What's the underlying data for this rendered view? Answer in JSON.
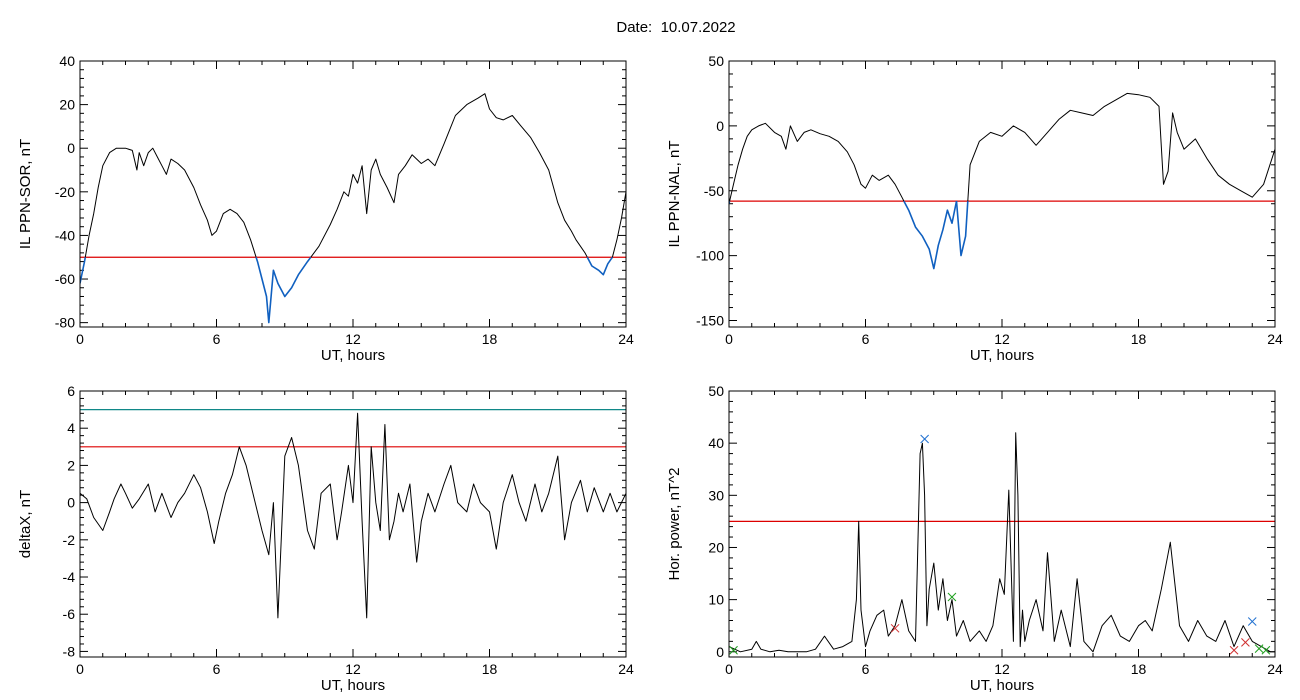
{
  "header": {
    "date_label": "Date:",
    "date_value": "10.07.2022"
  },
  "chart_data": [
    {
      "id": "p1",
      "type": "line",
      "ylabel": "IL PPN-SOR, nT",
      "xlabel": "UT, hours",
      "xlim": [
        0,
        24
      ],
      "ylim": [
        -82,
        40
      ],
      "xticks": [
        0,
        6,
        12,
        18,
        24
      ],
      "yticks": [
        40,
        20,
        0,
        -20,
        -40,
        -60,
        -80
      ],
      "threshold": {
        "value": -50,
        "color": "#dd0000"
      },
      "below_threshold_color": "#1060c0",
      "series_color": "#000000",
      "x": [
        0,
        0.2,
        0.4,
        0.6,
        0.8,
        1.0,
        1.3,
        1.6,
        2.0,
        2.3,
        2.5,
        2.6,
        2.8,
        3.0,
        3.2,
        3.4,
        3.6,
        3.8,
        4.0,
        4.3,
        4.6,
        5.0,
        5.3,
        5.6,
        5.8,
        6.0,
        6.3,
        6.6,
        6.9,
        7.2,
        7.5,
        7.8,
        8.0,
        8.2,
        8.3,
        8.5,
        8.7,
        9.0,
        9.3,
        9.6,
        10.0,
        10.5,
        11.0,
        11.3,
        11.6,
        11.8,
        12.0,
        12.2,
        12.4,
        12.6,
        12.8,
        13.0,
        13.2,
        13.5,
        13.8,
        14.0,
        14.3,
        14.6,
        15.0,
        15.3,
        15.6,
        16.0,
        16.5,
        17.0,
        17.5,
        17.8,
        18.0,
        18.3,
        18.6,
        19.0,
        19.4,
        19.8,
        20.2,
        20.6,
        21.0,
        21.3,
        21.6,
        21.8,
        22.0,
        22.2,
        22.5,
        22.8,
        23.0,
        23.2,
        23.4,
        23.6,
        23.8,
        24.0
      ],
      "y": [
        -62,
        -52,
        -40,
        -30,
        -18,
        -8,
        -2,
        0,
        0,
        -1,
        -10,
        -2,
        -8,
        -2,
        0,
        -4,
        -8,
        -12,
        -5,
        -7,
        -10,
        -18,
        -26,
        -33,
        -40,
        -38,
        -30,
        -28,
        -30,
        -34,
        -42,
        -52,
        -60,
        -68,
        -80,
        -56,
        -62,
        -68,
        -64,
        -58,
        -52,
        -45,
        -35,
        -28,
        -20,
        -22,
        -12,
        -16,
        -8,
        -30,
        -10,
        -5,
        -12,
        -18,
        -25,
        -12,
        -8,
        -3,
        -7,
        -5,
        -8,
        2,
        15,
        20,
        23,
        25,
        18,
        14,
        13,
        15,
        10,
        5,
        -2,
        -10,
        -25,
        -33,
        -38,
        -42,
        -45,
        -48,
        -54,
        -56,
        -58,
        -53,
        -50,
        -42,
        -32,
        -20
      ]
    },
    {
      "id": "p2",
      "type": "line",
      "ylabel": "IL PPN-NAL, nT",
      "xlabel": "UT, hours",
      "xlim": [
        0,
        24
      ],
      "ylim": [
        -155,
        50
      ],
      "xticks": [
        0,
        6,
        12,
        18,
        24
      ],
      "yticks": [
        50,
        0,
        -50,
        -100,
        -150
      ],
      "threshold": {
        "value": -58,
        "color": "#dd0000"
      },
      "below_threshold_color": "#1060c0",
      "series_color": "#000000",
      "x": [
        0,
        0.2,
        0.4,
        0.6,
        0.8,
        1.0,
        1.3,
        1.6,
        2.0,
        2.3,
        2.5,
        2.7,
        3.0,
        3.3,
        3.6,
        4.0,
        4.4,
        4.8,
        5.2,
        5.5,
        5.8,
        6.0,
        6.3,
        6.6,
        7.0,
        7.3,
        7.6,
        7.9,
        8.2,
        8.5,
        8.8,
        9.0,
        9.2,
        9.4,
        9.6,
        9.8,
        10.0,
        10.2,
        10.4,
        10.6,
        11.0,
        11.5,
        12.0,
        12.5,
        13.0,
        13.5,
        14.0,
        14.5,
        15.0,
        15.5,
        16.0,
        16.5,
        17.0,
        17.5,
        18.0,
        18.5,
        18.9,
        19.1,
        19.3,
        19.5,
        19.7,
        20.0,
        20.5,
        21.0,
        21.5,
        22.0,
        22.5,
        23.0,
        23.5,
        24.0
      ],
      "y": [
        -60,
        -45,
        -30,
        -18,
        -8,
        -3,
        0,
        2,
        -5,
        -8,
        -18,
        0,
        -12,
        -5,
        -3,
        -6,
        -8,
        -12,
        -20,
        -30,
        -45,
        -48,
        -38,
        -42,
        -38,
        -45,
        -55,
        -65,
        -78,
        -85,
        -95,
        -110,
        -92,
        -80,
        -65,
        -75,
        -58,
        -100,
        -85,
        -30,
        -12,
        -5,
        -8,
        0,
        -5,
        -15,
        -5,
        5,
        12,
        10,
        8,
        15,
        20,
        25,
        24,
        22,
        15,
        -45,
        -35,
        10,
        -5,
        -18,
        -10,
        -25,
        -38,
        -45,
        -50,
        -55,
        -45,
        -18
      ]
    },
    {
      "id": "p3",
      "type": "line",
      "ylabel": "deltaX, nT",
      "xlabel": "UT, hours",
      "xlim": [
        0,
        24
      ],
      "ylim": [
        -8.3,
        6
      ],
      "xticks": [
        0,
        6,
        12,
        18,
        24
      ],
      "yticks": [
        6,
        4,
        2,
        0,
        -2,
        -4,
        -6,
        -8
      ],
      "thresholds": [
        {
          "value": 5,
          "color": "#108888"
        },
        {
          "value": 3,
          "color": "#dd0000"
        }
      ],
      "series_color": "#000000",
      "x": [
        0,
        0.3,
        0.6,
        1.0,
        1.3,
        1.5,
        1.8,
        2.0,
        2.3,
        2.6,
        3.0,
        3.3,
        3.6,
        4.0,
        4.3,
        4.6,
        5.0,
        5.3,
        5.6,
        5.9,
        6.1,
        6.4,
        6.7,
        7.0,
        7.3,
        7.6,
        8.0,
        8.3,
        8.5,
        8.7,
        9.0,
        9.3,
        9.6,
        10.0,
        10.3,
        10.6,
        11.0,
        11.3,
        11.5,
        11.8,
        12.0,
        12.2,
        12.4,
        12.6,
        12.8,
        13.0,
        13.2,
        13.4,
        13.6,
        13.8,
        14.0,
        14.2,
        14.5,
        14.8,
        15.0,
        15.3,
        15.6,
        16.0,
        16.3,
        16.6,
        17.0,
        17.3,
        17.6,
        18.0,
        18.3,
        18.6,
        19.0,
        19.3,
        19.6,
        20.0,
        20.3,
        20.6,
        21.0,
        21.3,
        21.6,
        22.0,
        22.3,
        22.6,
        23.0,
        23.3,
        23.6,
        24.0
      ],
      "y": [
        0.5,
        0.2,
        -0.8,
        -1.5,
        -0.5,
        0.2,
        1,
        0.5,
        -0.3,
        0.2,
        1,
        -0.5,
        0.5,
        -0.8,
        0,
        0.5,
        1.5,
        0.8,
        -0.5,
        -2.2,
        -1,
        0.5,
        1.5,
        3,
        2,
        0.5,
        -1.5,
        -2.8,
        0,
        -6.2,
        2.5,
        3.5,
        2,
        -1.5,
        -2.5,
        0.5,
        1,
        -2,
        -0.5,
        2,
        0,
        4.8,
        -1,
        -6.2,
        3,
        0,
        -1.5,
        4.2,
        -2,
        -1,
        0.5,
        -0.5,
        1,
        -3.2,
        -1,
        0.5,
        -0.5,
        1,
        2,
        0,
        -0.5,
        1,
        0,
        -0.5,
        -2.5,
        0,
        1.5,
        0,
        -1,
        1,
        -0.5,
        0.5,
        2.5,
        -2,
        0,
        1.2,
        -0.5,
        0.8,
        -0.5,
        0.5,
        -0.5,
        0.5
      ]
    },
    {
      "id": "p4",
      "type": "line",
      "ylabel": "Hor. power, nT^2",
      "xlabel": "UT, hours",
      "xlim": [
        0,
        24
      ],
      "ylim": [
        -1,
        50
      ],
      "xticks": [
        0,
        6,
        12,
        18,
        24
      ],
      "yticks": [
        50,
        40,
        30,
        20,
        10,
        0
      ],
      "threshold": {
        "value": 25,
        "color": "#dd0000"
      },
      "series_color": "#000000",
      "x": [
        0,
        0.5,
        1.0,
        1.2,
        1.4,
        1.8,
        2.2,
        2.6,
        3.0,
        3.4,
        3.8,
        4.2,
        4.6,
        5.0,
        5.4,
        5.6,
        5.7,
        5.8,
        6.0,
        6.2,
        6.5,
        6.8,
        7.0,
        7.3,
        7.6,
        7.9,
        8.2,
        8.4,
        8.5,
        8.6,
        8.7,
        8.8,
        9.0,
        9.2,
        9.4,
        9.6,
        9.8,
        10.0,
        10.3,
        10.6,
        11.0,
        11.3,
        11.6,
        11.9,
        12.1,
        12.3,
        12.5,
        12.6,
        12.7,
        12.8,
        12.9,
        13.0,
        13.2,
        13.5,
        13.8,
        14.0,
        14.3,
        14.6,
        15.0,
        15.3,
        15.6,
        16.0,
        16.4,
        16.8,
        17.2,
        17.6,
        18.0,
        18.3,
        18.6,
        19.0,
        19.4,
        19.8,
        20.2,
        20.6,
        21.0,
        21.4,
        21.8,
        22.2,
        22.6,
        23.0,
        23.4,
        23.8,
        24.0
      ],
      "y": [
        1,
        0,
        0.5,
        2,
        0.5,
        0,
        0.3,
        0,
        0,
        0,
        0.5,
        3,
        0.5,
        1,
        2,
        10,
        25,
        8,
        1,
        4,
        7,
        8,
        3,
        5,
        10,
        4,
        2,
        38,
        40,
        30,
        5,
        12,
        17,
        8,
        14,
        6,
        10,
        3,
        6,
        2,
        4,
        2,
        5,
        14,
        11,
        31,
        2,
        42,
        30,
        1,
        8,
        2,
        6,
        10,
        4,
        19,
        2,
        8,
        1,
        14,
        2,
        0,
        5,
        7,
        3,
        2,
        5,
        6,
        4,
        12,
        21,
        5,
        2,
        6,
        3,
        2,
        6,
        1,
        5,
        2,
        1,
        0,
        0
      ],
      "markers": [
        {
          "x": 0.2,
          "y": 0.3,
          "symbol": "x",
          "color": "#20a020"
        },
        {
          "x": 7.3,
          "y": 4.5,
          "symbol": "x",
          "color": "#d03030"
        },
        {
          "x": 8.6,
          "y": 40.8,
          "symbol": "x",
          "color": "#2070d0"
        },
        {
          "x": 9.8,
          "y": 10.5,
          "symbol": "x",
          "color": "#20a020"
        },
        {
          "x": 22.2,
          "y": 0.3,
          "symbol": "x",
          "color": "#d03030"
        },
        {
          "x": 22.7,
          "y": 1.8,
          "symbol": "x",
          "color": "#d03030"
        },
        {
          "x": 23.0,
          "y": 5.8,
          "symbol": "x",
          "color": "#2070d0"
        },
        {
          "x": 23.3,
          "y": 0.6,
          "symbol": "x",
          "color": "#20a020"
        },
        {
          "x": 23.6,
          "y": 0.3,
          "symbol": "x",
          "color": "#20a020"
        }
      ]
    }
  ]
}
